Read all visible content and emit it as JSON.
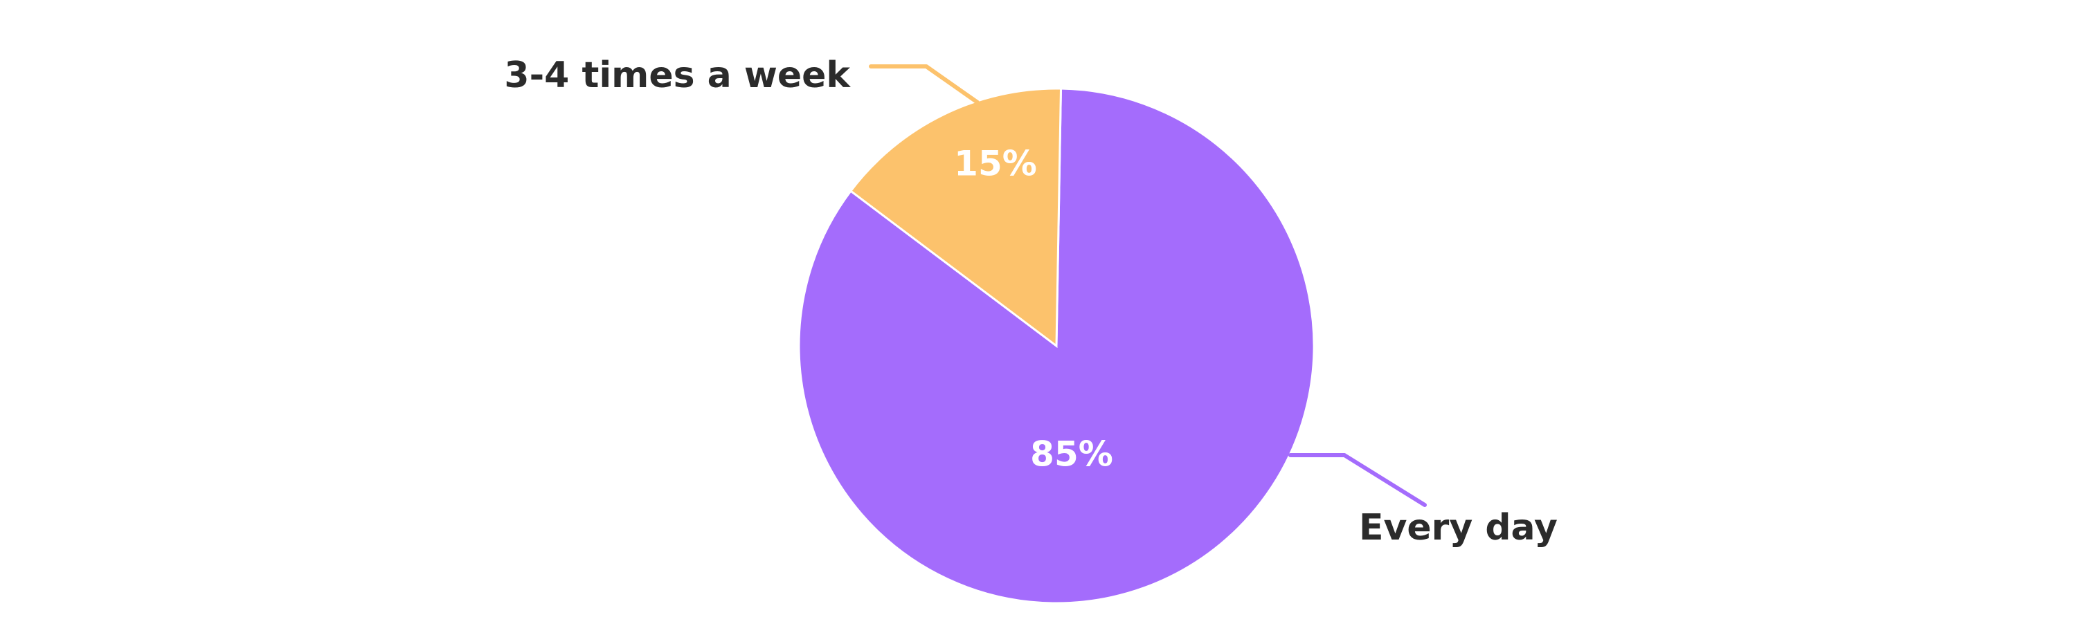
{
  "chart_data": {
    "type": "pie",
    "categories": [
      "Every day",
      "3-4 times a week"
    ],
    "values": [
      85,
      15
    ],
    "value_labels": [
      "85%",
      "15%"
    ],
    "colors": [
      "#a46cfc",
      "#fcc26c"
    ],
    "start_angle_deg": 1,
    "direction": "clockwise",
    "legend": "none",
    "label_style": "outside-with-leader-lines"
  }
}
